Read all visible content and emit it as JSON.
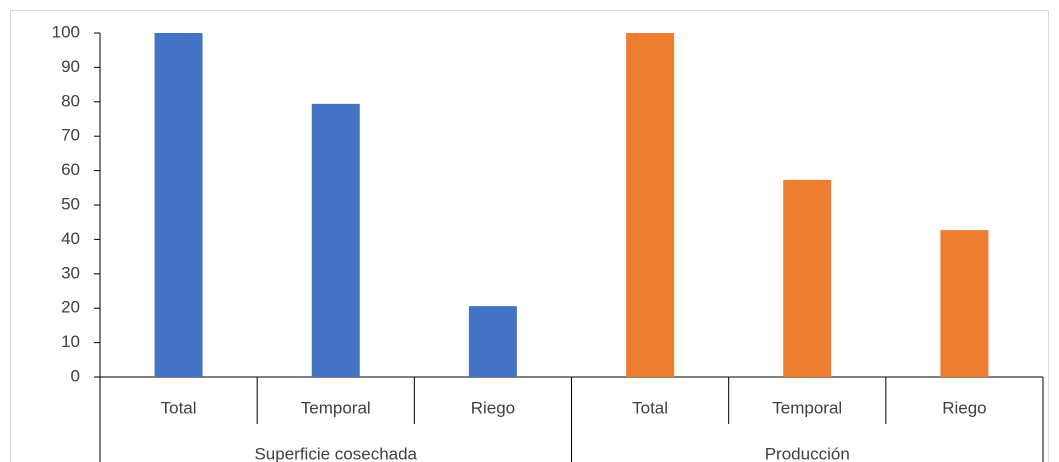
{
  "chart_data": {
    "type": "bar",
    "groups": [
      {
        "name": "Superficie cosechada",
        "color": "#4472c4",
        "categories": [
          "Total",
          "Temporal",
          "Riego"
        ],
        "values": [
          100,
          79.4,
          20.6
        ]
      },
      {
        "name": "Producción",
        "color": "#ed7d31",
        "categories": [
          "Total",
          "Temporal",
          "Riego"
        ],
        "values": [
          100,
          57.3,
          42.7
        ]
      }
    ],
    "ylim": [
      0,
      100
    ],
    "yticks": [
      0,
      10,
      20,
      30,
      40,
      50,
      60,
      70,
      80,
      90,
      100
    ],
    "grid": false
  }
}
